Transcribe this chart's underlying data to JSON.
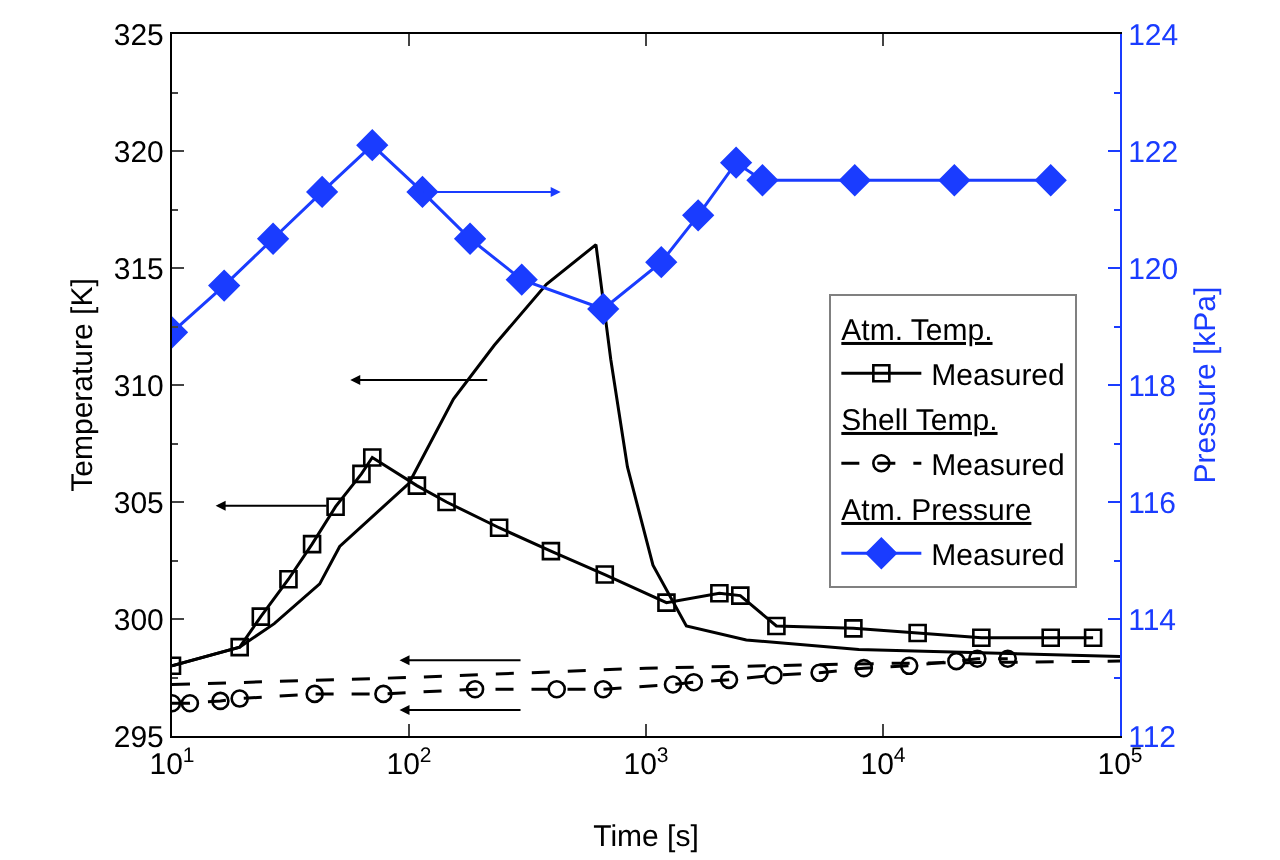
{
  "chart_data": {
    "type": "line",
    "xlabel": "Time [s]",
    "ylabel": "Temperature [K]",
    "y2label": "Pressure [kPa]",
    "log": "x",
    "xlim": [
      10,
      100000
    ],
    "xticks": [
      {
        "value": 10,
        "label": "10$^{1}$"
      },
      {
        "value": 100,
        "label": "10$^{2}$"
      },
      {
        "value": 1000,
        "label": "10$^{3}$"
      },
      {
        "value": 10000,
        "label": "10$^{4}$"
      },
      {
        "value": 100000,
        "label": "10$^{5}$"
      }
    ],
    "ylim": [
      295,
      325
    ],
    "yticks": [
      295,
      300,
      305,
      310,
      315,
      320,
      325
    ],
    "y2lim": [
      112,
      124
    ],
    "y2ticks": [
      112,
      114,
      116,
      118,
      120,
      122,
      124
    ],
    "grid": false,
    "legend": "right",
    "annotations": [
      "Atm. Temp.",
      "Shell Temp.",
      "Atm. Pressure"
    ],
    "series": [
      {
        "name": "Measured",
        "color": "#000000",
        "marker": "square",
        "line_style": "solid",
        "x": [
          10,
          19.3,
          23.7,
          31,
          39,
          49,
          63,
          70,
          108,
          144,
          240,
          397,
          670,
          1220,
          2040,
          2500,
          3550,
          7500,
          14000,
          26000,
          51000,
          77000
        ],
        "values": [
          298.0,
          298.8,
          300.1,
          301.7,
          303.2,
          304.8,
          306.2,
          306.9,
          305.7,
          305.0,
          303.9,
          302.9,
          301.9,
          300.7,
          301.1,
          301.0,
          299.7,
          299.6,
          299.4,
          299.2,
          299.2,
          299.2
        ]
      },
      {
        "color": "#000000",
        "marker": "none",
        "line_style": "solid",
        "x": [
          10,
          19.3,
          27,
          42,
          51,
          100,
          154,
          229,
          380,
          615,
          710,
          835,
          1070,
          1480,
          2650,
          7900,
          100000
        ],
        "values": [
          298.0,
          298.8,
          299.8,
          301.5,
          303.1,
          305.8,
          309.4,
          311.7,
          314.3,
          316.0,
          311.1,
          306.5,
          302.3,
          299.7,
          299.1,
          298.7,
          298.4
        ]
      },
      {
        "name": "Measured",
        "color": "#000000",
        "marker": "circle",
        "line_style": "dashed",
        "x": [
          10,
          11.9,
          16,
          19.3,
          40,
          78,
          190,
          420,
          660,
          1300,
          1590,
          2240,
          3450,
          5400,
          8300,
          12900,
          20400,
          25000,
          33600
        ],
        "values": [
          296.4,
          296.4,
          296.5,
          296.6,
          296.8,
          296.8,
          297.0,
          297.0,
          297.0,
          297.2,
          297.3,
          297.4,
          297.6,
          297.7,
          297.9,
          298.0,
          298.2,
          298.3,
          298.3
        ]
      },
      {
        "color": "#000000",
        "marker": "none",
        "line_style": "dashed",
        "x": [
          10,
          100,
          1000,
          10000,
          100000
        ],
        "values": [
          297.2,
          297.5,
          297.9,
          298.1,
          298.2
        ]
      },
      {
        "name": "Measured",
        "color": "#1a3cff",
        "marker": "diamond",
        "line_style": "solid",
        "axis": "y2",
        "x": [
          10,
          16.6,
          26.7,
          43,
          70,
          114,
          181,
          299,
          660,
          1160,
          1660,
          2400,
          3100,
          7600,
          20000,
          51000
        ],
        "values": [
          118.9,
          119.7,
          120.5,
          121.3,
          122.1,
          121.3,
          120.5,
          119.8,
          119.3,
          120.1,
          120.9,
          121.8,
          121.5,
          121.5,
          121.5,
          121.5
        ]
      }
    ]
  }
}
